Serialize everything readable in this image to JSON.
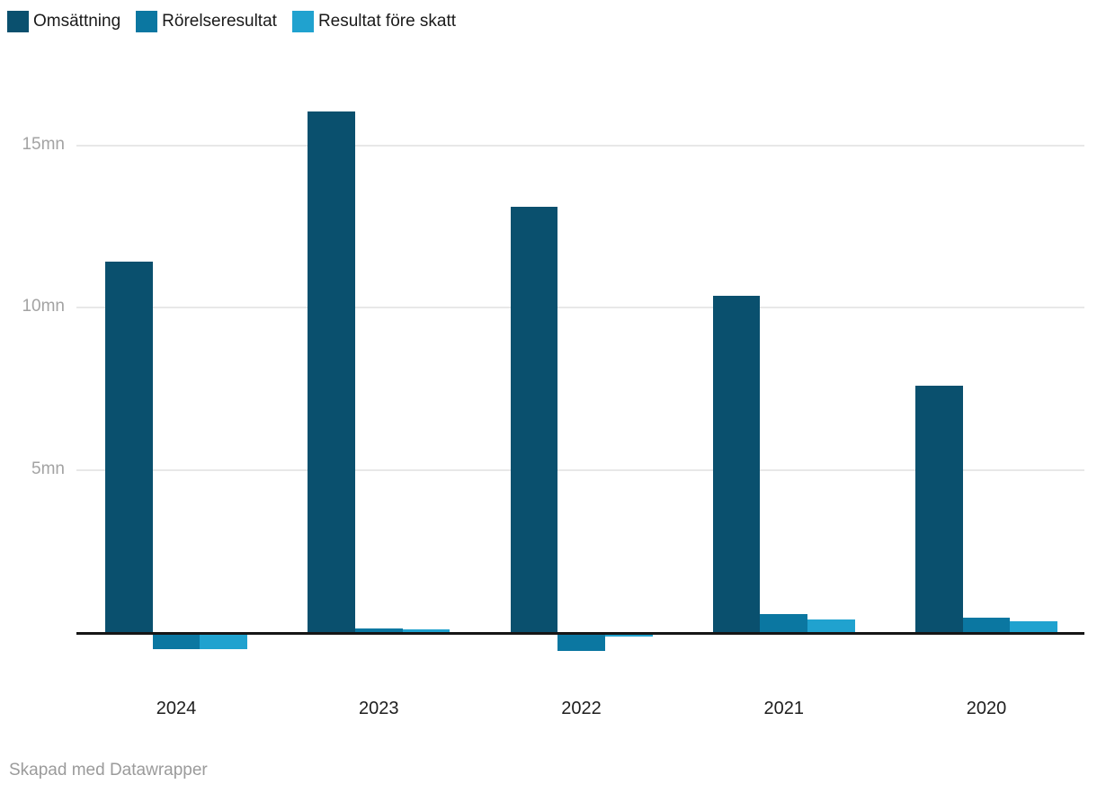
{
  "chart_data": {
    "type": "bar",
    "title": "",
    "categories": [
      "2024",
      "2023",
      "2022",
      "2021",
      "2020"
    ],
    "series": [
      {
        "name": "Omsättning",
        "color": "#0a506e",
        "values": [
          11.4,
          16.05,
          13.1,
          10.35,
          7.6
        ]
      },
      {
        "name": "Rörelseresultat",
        "color": "#0b77a1",
        "values": [
          -0.45,
          0.12,
          -0.5,
          0.55,
          0.45
        ]
      },
      {
        "name": "Resultat före skatt",
        "color": "#20a2cf",
        "values": [
          -0.45,
          0.07,
          -0.05,
          0.38,
          0.32
        ]
      }
    ],
    "unit": "mn",
    "y_ticks": [
      {
        "value": 5,
        "label": "5mn"
      },
      {
        "value": 10,
        "label": "10mn"
      },
      {
        "value": 15,
        "label": "15mn"
      }
    ],
    "ylim": [
      -0.6,
      16.5
    ],
    "grid": true,
    "legend_position": "top",
    "zero_line": true,
    "xlabel": "",
    "ylabel": ""
  },
  "colors": {
    "grid_line": "#e8e8e8",
    "zero_line": "#161616",
    "y_tick_label": "#a3a3a3",
    "x_tick_label": "#1d1d1d",
    "legend_label": "#1a1a1a",
    "footer_text": "#9b9b9b",
    "background": "#ffffff"
  },
  "footer": {
    "credit": "Skapad med Datawrapper"
  }
}
